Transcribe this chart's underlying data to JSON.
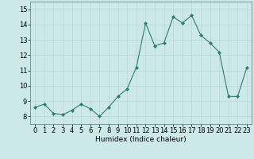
{
  "x": [
    0,
    1,
    2,
    3,
    4,
    5,
    6,
    7,
    8,
    9,
    10,
    11,
    12,
    13,
    14,
    15,
    16,
    17,
    18,
    19,
    20,
    21,
    22,
    23
  ],
  "y": [
    8.6,
    8.8,
    8.2,
    8.1,
    8.4,
    8.8,
    8.5,
    8.0,
    8.6,
    9.3,
    9.8,
    11.2,
    14.1,
    12.6,
    12.8,
    14.5,
    14.1,
    14.6,
    13.3,
    12.8,
    12.2,
    9.3,
    9.3,
    11.2
  ],
  "xlabel": "Humidex (Indice chaleur)",
  "ylabel": "",
  "xlim": [
    -0.5,
    23.5
  ],
  "ylim": [
    7.5,
    15.5
  ],
  "yticks": [
    8,
    9,
    10,
    11,
    12,
    13,
    14,
    15
  ],
  "xticks": [
    0,
    1,
    2,
    3,
    4,
    5,
    6,
    7,
    8,
    9,
    10,
    11,
    12,
    13,
    14,
    15,
    16,
    17,
    18,
    19,
    20,
    21,
    22,
    23
  ],
  "line_color": "#2e7d6e",
  "marker_color": "#2e7d6e",
  "bg_color": "#cce8e8",
  "grid_color": "#b8d8d8",
  "label_fontsize": 6.5,
  "tick_fontsize": 6
}
